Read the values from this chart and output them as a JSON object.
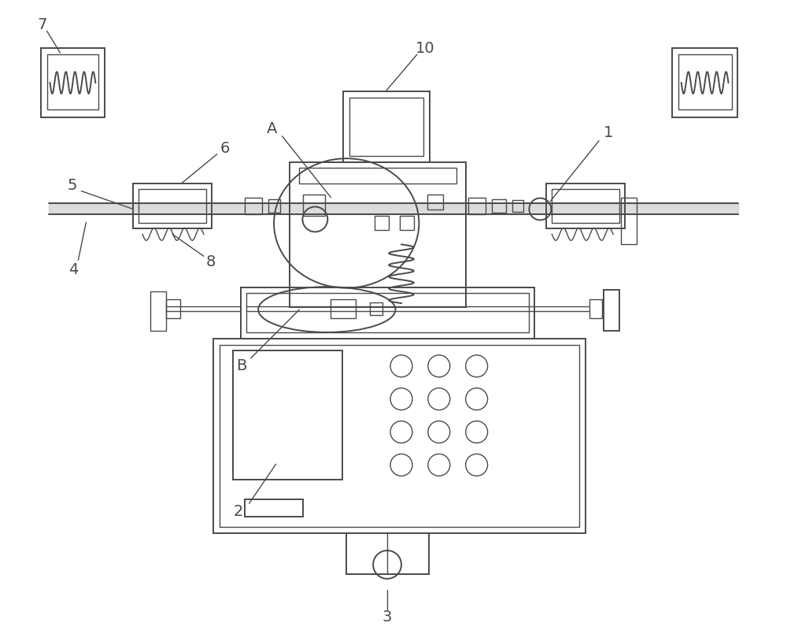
{
  "bg_color": "#ffffff",
  "lc": "#4a4a4a",
  "lw": 1.4,
  "tlw": 1.0,
  "fig_width": 10.0,
  "fig_height": 8.05
}
